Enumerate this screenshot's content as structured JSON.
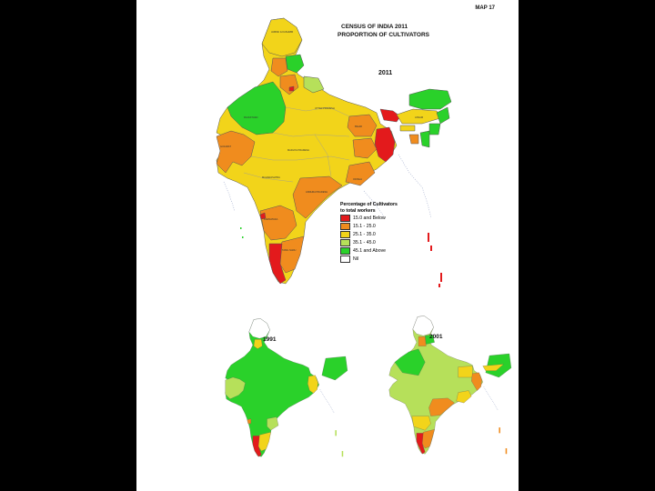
{
  "map_number": "MAP 17",
  "title_line1": "CENSUS OF INDIA 2011",
  "title_line2": "PROPORTION OF CULTIVATORS",
  "years": {
    "main": "2011",
    "small_left": "1991",
    "small_right": "2001"
  },
  "legend": {
    "title_line1": "Percentage of Cultivators",
    "title_line2": "to total workers",
    "items": [
      {
        "label": "15.0 and Below",
        "color": "#e31a1c"
      },
      {
        "label": "15.1 - 25.0",
        "color": "#f08c1e"
      },
      {
        "label": "25.1 - 35.0",
        "color": "#f2d41a"
      },
      {
        "label": "35.1 - 45.0",
        "color": "#b6e05a"
      },
      {
        "label": "45.1 and Above",
        "color": "#2ad12a"
      },
      {
        "label": "Nil",
        "color": "#ffffff"
      }
    ]
  },
  "palette": {
    "page_background": "#000000",
    "sheet": "#ffffff",
    "sea_dots": "#9aa6c8"
  }
}
